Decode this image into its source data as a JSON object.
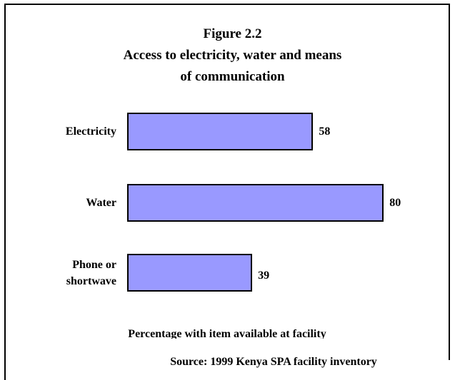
{
  "chart_data": {
    "type": "bar",
    "orientation": "horizontal",
    "title": [
      "Figure 2.2",
      "Access to electricity, water and means",
      "of communication"
    ],
    "categories": [
      "Electricity",
      "Water",
      "Phone or\nshortwave"
    ],
    "values": [
      58,
      80,
      39
    ],
    "color": "#9999ff",
    "xlim": [
      0,
      100
    ],
    "xlabel": "Percentage with item available at facility",
    "source": "Source: 1999 Kenya SPA facility inventory"
  }
}
